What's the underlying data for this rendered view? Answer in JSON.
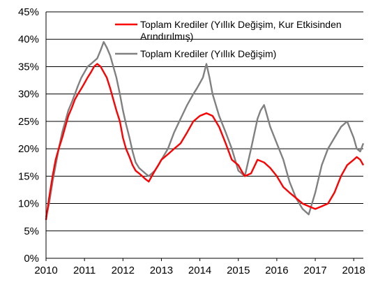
{
  "chart_data": {
    "type": "line",
    "title": "",
    "xlabel": "",
    "ylabel": "",
    "x_ticks": [
      "2010",
      "2011",
      "2012",
      "2013",
      "2014",
      "2015",
      "2016",
      "2017",
      "2018"
    ],
    "y_ticks": [
      "0%",
      "5%",
      "10%",
      "15%",
      "20%",
      "25%",
      "30%",
      "35%",
      "40%",
      "45%"
    ],
    "xlim": [
      2010,
      2018.25
    ],
    "ylim": [
      0,
      45
    ],
    "grid": "horizontal",
    "legend_position": "top-right",
    "legend_entries": [
      {
        "line1": "Toplam Krediler (Yıllık Değişim, Kur Etkisinden",
        "line2": "Arındırılmış)"
      },
      {
        "line1": "Toplam Krediler (Yıllık Değişim)",
        "line2": ""
      }
    ],
    "series": [
      {
        "name": "Toplam Krediler (Yıllık Değişim, Kur Etkisinden Arındırılmış)",
        "color": "#ff0000",
        "x": [
          2010.0,
          2010.08,
          2010.17,
          2010.25,
          2010.33,
          2010.42,
          2010.5,
          2010.58,
          2010.67,
          2010.75,
          2010.83,
          2010.92,
          2011.0,
          2011.08,
          2011.17,
          2011.25,
          2011.33,
          2011.42,
          2011.5,
          2011.58,
          2011.67,
          2011.75,
          2011.83,
          2011.92,
          2012.0,
          2012.08,
          2012.17,
          2012.25,
          2012.33,
          2012.42,
          2012.5,
          2012.58,
          2012.67,
          2012.75,
          2012.83,
          2012.92,
          2013.0,
          2013.17,
          2013.33,
          2013.5,
          2013.67,
          2013.83,
          2014.0,
          2014.17,
          2014.33,
          2014.5,
          2014.67,
          2014.83,
          2015.0,
          2015.08,
          2015.17,
          2015.33,
          2015.5,
          2015.67,
          2015.83,
          2016.0,
          2016.17,
          2016.33,
          2016.5,
          2016.67,
          2016.83,
          2017.0,
          2017.17,
          2017.33,
          2017.5,
          2017.67,
          2017.83,
          2018.0,
          2018.08,
          2018.17,
          2018.25
        ],
        "values": [
          7,
          11,
          15,
          18,
          20,
          22,
          24,
          26,
          27.5,
          29,
          30,
          31,
          32,
          33,
          34,
          35,
          35.5,
          35,
          34,
          33,
          31,
          29,
          27,
          25,
          22,
          20,
          18.5,
          17,
          16,
          15.5,
          15,
          14.5,
          14,
          15,
          16,
          17,
          18,
          19,
          20,
          21,
          23,
          25,
          26,
          26.5,
          26,
          24,
          21,
          18,
          17,
          16,
          15,
          15.5,
          18,
          17.5,
          16.5,
          15,
          13,
          12,
          11,
          10,
          9.5,
          9,
          9.5,
          10,
          12,
          15,
          17,
          18,
          18.5,
          18,
          17
        ]
      },
      {
        "name": "Toplam Krediler (Yıllık Değişim)",
        "color": "#808080",
        "x": [
          2010.0,
          2010.08,
          2010.17,
          2010.25,
          2010.33,
          2010.42,
          2010.5,
          2010.58,
          2010.67,
          2010.75,
          2010.83,
          2010.92,
          2011.0,
          2011.08,
          2011.17,
          2011.25,
          2011.33,
          2011.42,
          2011.5,
          2011.58,
          2011.67,
          2011.75,
          2011.83,
          2011.92,
          2012.0,
          2012.08,
          2012.17,
          2012.25,
          2012.33,
          2012.42,
          2012.5,
          2012.58,
          2012.67,
          2012.75,
          2012.83,
          2012.92,
          2013.0,
          2013.17,
          2013.33,
          2013.5,
          2013.67,
          2013.83,
          2013.92,
          2014.0,
          2014.08,
          2014.17,
          2014.25,
          2014.33,
          2014.5,
          2014.67,
          2014.83,
          2015.0,
          2015.17,
          2015.33,
          2015.5,
          2015.58,
          2015.67,
          2015.83,
          2016.0,
          2016.17,
          2016.33,
          2016.5,
          2016.67,
          2016.83,
          2017.0,
          2017.17,
          2017.33,
          2017.5,
          2017.67,
          2017.83,
          2018.0,
          2018.08,
          2018.17,
          2018.25
        ],
        "values": [
          7.5,
          10,
          14,
          17,
          20,
          23,
          25,
          27,
          28.5,
          30,
          31.5,
          33,
          34,
          35,
          35.5,
          36,
          36.5,
          38,
          39.5,
          38.5,
          37,
          35,
          33,
          30,
          27,
          24.5,
          22,
          19.5,
          17.5,
          16.5,
          16,
          15.5,
          15,
          15.5,
          16,
          17,
          18,
          20,
          23,
          25.5,
          28,
          30,
          31,
          32,
          33,
          35.5,
          33,
          30,
          26,
          23,
          20,
          16,
          15,
          20,
          25.5,
          27,
          28,
          24,
          21,
          18,
          14,
          11,
          9,
          8,
          12,
          17,
          20,
          22,
          24,
          25,
          22,
          20,
          19.5,
          21
        ]
      }
    ]
  }
}
